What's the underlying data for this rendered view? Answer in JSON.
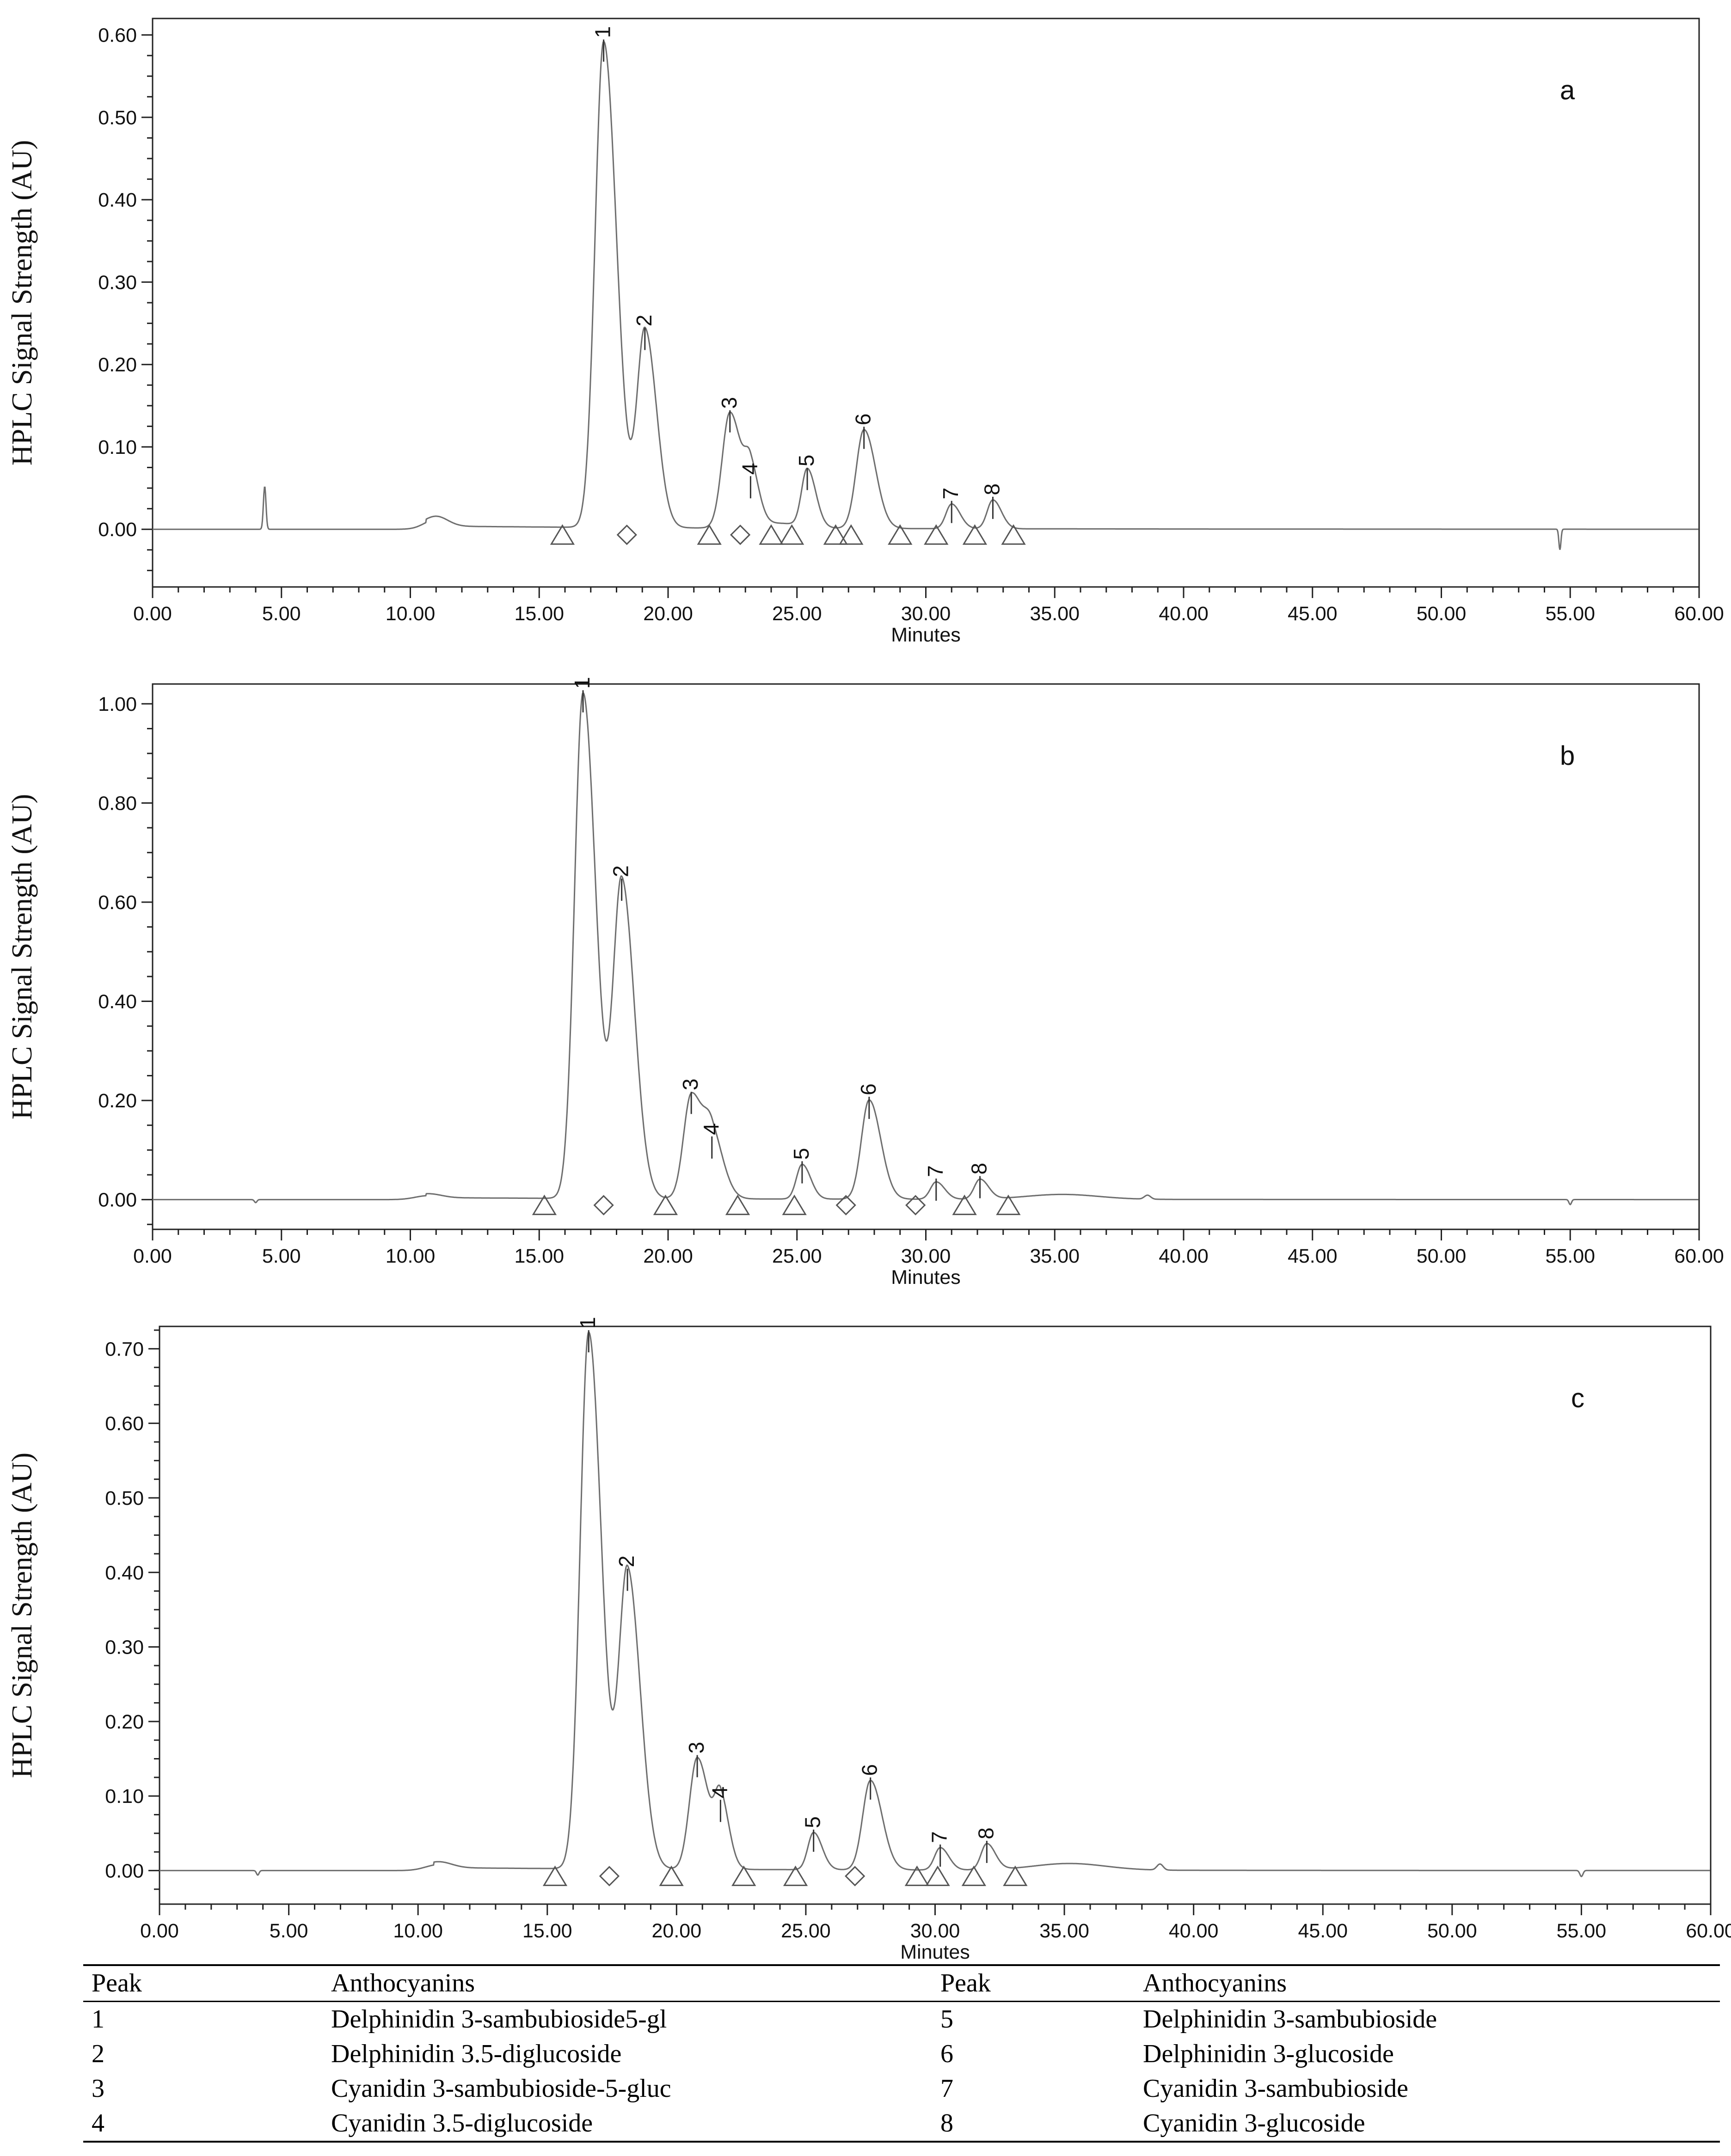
{
  "chart_data": [
    {
      "type": "line",
      "panel_label": "a",
      "xlabel": "Minutes",
      "ylabel": "HPLC Signal Strength (AU)",
      "xlim": [
        0,
        60
      ],
      "ylim": [
        -0.07,
        0.62
      ],
      "xticks": [
        "0.00",
        "5.00",
        "10.00",
        "15.00",
        "20.00",
        "25.00",
        "30.00",
        "35.00",
        "40.00",
        "45.00",
        "50.00",
        "55.00",
        "60.00"
      ],
      "yticks": [
        "0.00",
        "0.10",
        "0.20",
        "0.30",
        "0.40",
        "0.50",
        "0.60"
      ],
      "peaks": [
        {
          "label": "1",
          "x": 17.5,
          "y": 0.59
        },
        {
          "label": "2",
          "x": 19.1,
          "y": 0.24
        },
        {
          "label": "3",
          "x": 22.4,
          "y": 0.14
        },
        {
          "label": "4",
          "x": 23.2,
          "y": 0.06
        },
        {
          "label": "5",
          "x": 25.4,
          "y": 0.07
        },
        {
          "label": "6",
          "x": 27.6,
          "y": 0.12
        },
        {
          "label": "7",
          "x": 31.0,
          "y": 0.03
        },
        {
          "label": "8",
          "x": 32.6,
          "y": 0.035
        }
      ],
      "markers": [
        {
          "shape": "triangle",
          "x": 15.9
        },
        {
          "shape": "diamond",
          "x": 18.4
        },
        {
          "shape": "triangle",
          "x": 21.6
        },
        {
          "shape": "diamond",
          "x": 22.8
        },
        {
          "shape": "triangle",
          "x": 24.0
        },
        {
          "shape": "triangle",
          "x": 24.8
        },
        {
          "shape": "triangle",
          "x": 26.5
        },
        {
          "shape": "triangle",
          "x": 27.1
        },
        {
          "shape": "triangle",
          "x": 29.0
        },
        {
          "shape": "triangle",
          "x": 30.4
        },
        {
          "shape": "triangle",
          "x": 31.9
        },
        {
          "shape": "triangle",
          "x": 33.4
        }
      ]
    },
    {
      "type": "line",
      "panel_label": "b",
      "xlabel": "Minutes",
      "ylabel": "HPLC Signal Strength (AU)",
      "xlim": [
        0,
        60
      ],
      "ylim": [
        -0.06,
        1.04
      ],
      "xticks": [
        "0.00",
        "5.00",
        "10.00",
        "15.00",
        "20.00",
        "25.00",
        "30.00",
        "35.00",
        "40.00",
        "45.00",
        "50.00",
        "55.00",
        "60.00"
      ],
      "yticks": [
        "0.00",
        "0.20",
        "0.40",
        "0.60",
        "0.80",
        "1.00"
      ],
      "peaks": [
        {
          "label": "1",
          "x": 16.7,
          "y": 1.02
        },
        {
          "label": "2",
          "x": 18.2,
          "y": 0.64
        },
        {
          "label": "3",
          "x": 20.9,
          "y": 0.21
        },
        {
          "label": "4",
          "x": 21.7,
          "y": 0.12
        },
        {
          "label": "5",
          "x": 25.2,
          "y": 0.07
        },
        {
          "label": "6",
          "x": 27.8,
          "y": 0.2
        },
        {
          "label": "7",
          "x": 30.4,
          "y": 0.035
        },
        {
          "label": "8",
          "x": 32.1,
          "y": 0.04
        }
      ],
      "markers": [
        {
          "shape": "triangle",
          "x": 15.2
        },
        {
          "shape": "diamond",
          "x": 17.5
        },
        {
          "shape": "triangle",
          "x": 19.9
        },
        {
          "shape": "triangle",
          "x": 22.7
        },
        {
          "shape": "triangle",
          "x": 24.9
        },
        {
          "shape": "diamond",
          "x": 26.9
        },
        {
          "shape": "diamond",
          "x": 29.6
        },
        {
          "shape": "triangle",
          "x": 31.5
        },
        {
          "shape": "triangle",
          "x": 33.2
        }
      ]
    },
    {
      "type": "line",
      "panel_label": "c",
      "xlabel": "Minutes",
      "ylabel": "HPLC Signal Strength (AU)",
      "xlim": [
        0,
        60
      ],
      "ylim": [
        -0.045,
        0.73
      ],
      "xticks": [
        "0.00",
        "5.00",
        "10.00",
        "15.00",
        "20.00",
        "25.00",
        "30.00",
        "35.00",
        "40.00",
        "45.00",
        "50.00",
        "55.00",
        "60.00"
      ],
      "yticks": [
        "0.00",
        "0.10",
        "0.20",
        "0.30",
        "0.40",
        "0.50",
        "0.60",
        "0.70"
      ],
      "peaks": [
        {
          "label": "1",
          "x": 16.6,
          "y": 0.72
        },
        {
          "label": "2",
          "x": 18.1,
          "y": 0.4
        },
        {
          "label": "3",
          "x": 20.8,
          "y": 0.15
        },
        {
          "label": "4",
          "x": 21.7,
          "y": 0.09
        },
        {
          "label": "5",
          "x": 25.3,
          "y": 0.05
        },
        {
          "label": "6",
          "x": 27.5,
          "y": 0.12
        },
        {
          "label": "7",
          "x": 30.2,
          "y": 0.03
        },
        {
          "label": "8",
          "x": 32.0,
          "y": 0.035
        }
      ],
      "markers": [
        {
          "shape": "triangle",
          "x": 15.3
        },
        {
          "shape": "diamond",
          "x": 17.4
        },
        {
          "shape": "triangle",
          "x": 19.8
        },
        {
          "shape": "triangle",
          "x": 22.6
        },
        {
          "shape": "triangle",
          "x": 24.6
        },
        {
          "shape": "diamond",
          "x": 26.9
        },
        {
          "shape": "triangle",
          "x": 29.3
        },
        {
          "shape": "triangle",
          "x": 30.1
        },
        {
          "shape": "triangle",
          "x": 31.5
        },
        {
          "shape": "triangle",
          "x": 33.1
        }
      ]
    }
  ],
  "table": {
    "headers": [
      "Peak",
      "Anthocyanins",
      "Peak",
      "Anthocyanins"
    ],
    "rows": [
      [
        "1",
        "Delphinidin 3-sambubioside5-gl",
        "5",
        "Delphinidin 3-sambubioside"
      ],
      [
        "2",
        "Delphinidin 3.5-diglucoside",
        "6",
        "Delphinidin 3-glucoside"
      ],
      [
        "3",
        "Cyanidin 3-sambubioside-5-gluc",
        "7",
        "Cyanidin 3-sambubioside"
      ],
      [
        "4",
        "Cyanidin 3.5-diglucoside",
        "8",
        "Cyanidin 3-glucoside"
      ]
    ]
  }
}
